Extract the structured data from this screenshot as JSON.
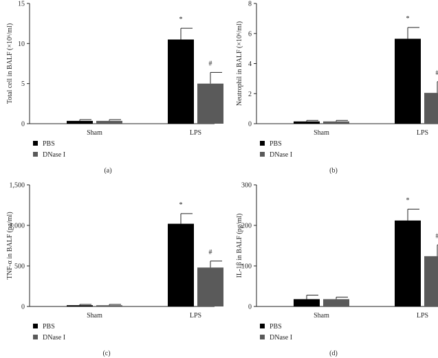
{
  "chart_data": [
    {
      "type": "bar",
      "panel_label": "(a)",
      "ylabel": "Total cell in BALF (×10⁶/ml)",
      "ylim": [
        0,
        15
      ],
      "yticks": [
        0,
        5,
        10,
        15
      ],
      "ytick_labels": [
        "0",
        "5",
        "10",
        "15"
      ],
      "categories": [
        "Sham",
        "LPS"
      ],
      "series": [
        {
          "name": "PBS",
          "color": "#000000",
          "values": [
            0.35,
            10.5
          ],
          "errors": [
            0.15,
            1.4
          ],
          "markers": [
            "",
            "*"
          ]
        },
        {
          "name": "DNase I",
          "color": "#5a5a5a",
          "values": [
            0.35,
            5.0
          ],
          "errors": [
            0.15,
            1.4
          ],
          "markers": [
            "",
            "#"
          ]
        }
      ],
      "legend": [
        "PBS",
        "DNase I"
      ]
    },
    {
      "type": "bar",
      "panel_label": "(b)",
      "ylabel": "Neutrophil in BALF (×10⁶/ml)",
      "ylim": [
        0,
        8
      ],
      "yticks": [
        0,
        2,
        4,
        6,
        8
      ],
      "ytick_labels": [
        "0",
        "2",
        "4",
        "6",
        "8"
      ],
      "categories": [
        "Sham",
        "LPS"
      ],
      "series": [
        {
          "name": "PBS",
          "color": "#000000",
          "values": [
            0.15,
            5.65
          ],
          "errors": [
            0.07,
            0.75
          ],
          "markers": [
            "",
            "*"
          ]
        },
        {
          "name": "DNase I",
          "color": "#5a5a5a",
          "values": [
            0.15,
            2.05
          ],
          "errors": [
            0.07,
            0.75
          ],
          "markers": [
            "",
            "#"
          ]
        }
      ],
      "legend": [
        "PBS",
        "DNase I"
      ]
    },
    {
      "type": "bar",
      "panel_label": "(c)",
      "ylabel": "TNF-α in BALF (pg/ml)",
      "ylim": [
        0,
        1500
      ],
      "yticks": [
        0,
        500,
        1000,
        1500
      ],
      "ytick_labels": [
        "0",
        "500",
        "1,000",
        "1,500"
      ],
      "categories": [
        "Sham",
        "LPS"
      ],
      "series": [
        {
          "name": "PBS",
          "color": "#000000",
          "values": [
            15,
            1020
          ],
          "errors": [
            10,
            125
          ],
          "markers": [
            "",
            "*"
          ]
        },
        {
          "name": "DNase I",
          "color": "#5a5a5a",
          "values": [
            15,
            480
          ],
          "errors": [
            10,
            80
          ],
          "markers": [
            "",
            "#"
          ]
        }
      ],
      "legend": [
        "PBS",
        "DNase I"
      ]
    },
    {
      "type": "bar",
      "panel_label": "(d)",
      "ylabel": "IL-1β in BALF (pg/ml)",
      "ylim": [
        0,
        300
      ],
      "yticks": [
        0,
        100,
        200,
        300
      ],
      "ytick_labels": [
        "0",
        "100",
        "200",
        "300"
      ],
      "categories": [
        "Sham",
        "LPS"
      ],
      "series": [
        {
          "name": "PBS",
          "color": "#000000",
          "values": [
            18,
            212
          ],
          "errors": [
            10,
            28
          ],
          "markers": [
            "",
            "*"
          ]
        },
        {
          "name": "DNase I",
          "color": "#5a5a5a",
          "values": [
            18,
            124
          ],
          "errors": [
            5,
            28
          ],
          "markers": [
            "",
            "#"
          ]
        }
      ],
      "legend": [
        "PBS",
        "DNase I"
      ]
    }
  ]
}
